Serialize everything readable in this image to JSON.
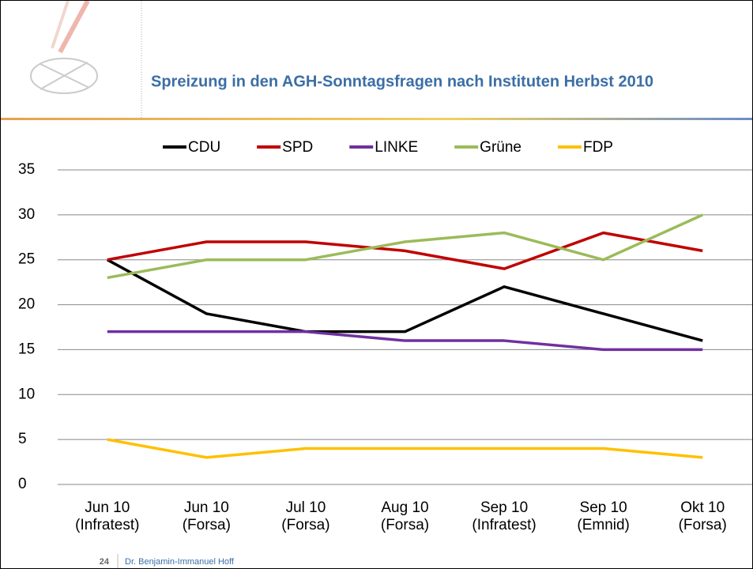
{
  "header": {
    "title": "Spreizung in den AGH-Sonntagsfragen nach Instituten Herbst 2010"
  },
  "footer": {
    "page": "24",
    "author": "Dr. Benjamin-Immanuel Hoff"
  },
  "chart_data": {
    "type": "line",
    "categories": [
      "Jun 10\n(Infratest)",
      "Jun 10\n(Forsa)",
      "Jul 10\n(Forsa)",
      "Aug 10\n(Forsa)",
      "Sep 10\n(Infratest)",
      "Sep 10\n(Emnid)",
      "Okt 10\n(Forsa)"
    ],
    "series": [
      {
        "name": "CDU",
        "color": "#000000",
        "values": [
          25,
          19,
          17,
          17,
          22,
          19,
          16
        ]
      },
      {
        "name": "SPD",
        "color": "#c00000",
        "values": [
          25,
          27,
          27,
          26,
          24,
          28,
          26
        ]
      },
      {
        "name": "LINKE",
        "color": "#7030a0",
        "values": [
          17,
          17,
          17,
          16,
          16,
          15,
          15
        ]
      },
      {
        "name": "Grüne",
        "color": "#9bbb59",
        "values": [
          23,
          25,
          25,
          27,
          28,
          25,
          30
        ]
      },
      {
        "name": "FDP",
        "color": "#ffc000",
        "values": [
          5,
          3,
          4,
          4,
          4,
          4,
          3
        ]
      }
    ],
    "ylim": [
      0,
      35
    ],
    "yticks": [
      0,
      5,
      10,
      15,
      20,
      25,
      30,
      35
    ],
    "grid": true,
    "legend": "top"
  }
}
